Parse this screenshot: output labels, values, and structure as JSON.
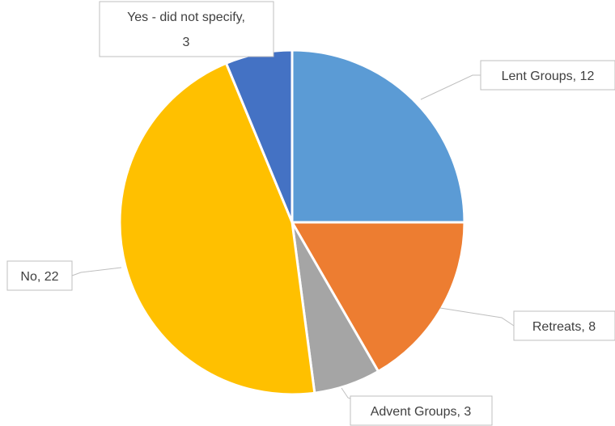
{
  "chart_data": {
    "type": "pie",
    "title": "",
    "start_angle_deg": 0,
    "direction": "clockwise",
    "slices": [
      {
        "label": "Lent Groups",
        "value": 12,
        "color": "#5B9BD5",
        "label_text": "Lent Groups, 12"
      },
      {
        "label": "Retreats",
        "value": 8,
        "color": "#ED7D31",
        "label_text": "Retreats, 8"
      },
      {
        "label": "Advent Groups",
        "value": 3,
        "color": "#A5A5A5",
        "label_text": "Advent Groups, 3"
      },
      {
        "label": "No",
        "value": 22,
        "color": "#FFC000",
        "label_text": "No, 22"
      },
      {
        "label": "Yes - did not specify",
        "value": 3,
        "color": "#4472C4",
        "label_text_lines": [
          "Yes - did not specify,",
          "3"
        ]
      }
    ],
    "legend": "none",
    "data_labels": "callouts with leader lines"
  }
}
